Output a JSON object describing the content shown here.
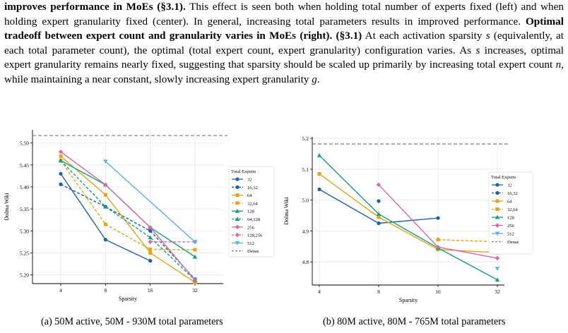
{
  "paragraph": {
    "s1_bold": "improves performance in MoEs (§3.1).",
    "s1_rest": " This effect is seen both when holding total number of experts fixed (left) and when holding expert granularity fixed (center). In general, increasing total parameters results in improved performance. ",
    "s2_bold": "Optimal tradeoff between expert count and granularity varies in MoEs (right). (§3.1)",
    "s2_a": " At each activation sparsity ",
    "var_s": "s",
    "s2_b": " (equivalently, at each total parameter count), the optimal (total expert count, expert granularity) configuration varies. As ",
    "s2_c": " increases, optimal expert granularity remains nearly fixed, suggesting that sparsity should be scaled up primarily by increasing total expert count ",
    "var_n": "n",
    "s2_d": ", while maintaining a near constant, slowly increasing expert granularity ",
    "var_g": "g",
    "s2_e": "."
  },
  "colors": {
    "32": "#1f5fa8",
    "64": "#e6a21a",
    "128": "#179e7a",
    "256": "#d46aa9",
    "512": "#56b4e9",
    "dense": "#8a8a8a"
  },
  "chart_data": [
    {
      "type": "line",
      "xlabel": "Sparsity",
      "ylabel": "Dolma Wiki",
      "x_ticks": [
        "4",
        "8",
        "16",
        "32"
      ],
      "y_ticks": [
        "5.20",
        "5.25",
        "5.30",
        "5.35",
        "5.40",
        "5.45",
        "5.50"
      ],
      "ylim": [
        5.18,
        5.53
      ],
      "legend_title": "Total Experts",
      "dense": 5.517,
      "series": [
        {
          "name": "32",
          "style": "solid",
          "colorKey": "32",
          "marker": "circle",
          "x": [
            "4",
            "8",
            "16"
          ],
          "values": [
            5.43,
            5.28,
            5.232
          ]
        },
        {
          "name": "16,32",
          "style": "dashed",
          "colorKey": "32",
          "marker": "circle",
          "x": [
            "4",
            "8",
            "16",
            "32"
          ],
          "values": [
            5.406,
            5.355,
            5.3,
            5.19
          ]
        },
        {
          "name": "64",
          "style": "solid",
          "colorKey": "64",
          "marker": "square",
          "x": [
            "4",
            "8",
            "16",
            "32"
          ],
          "values": [
            5.47,
            5.382,
            5.25,
            5.183
          ]
        },
        {
          "name": "32,64",
          "style": "dashed",
          "colorKey": "64",
          "marker": "square",
          "x": [
            "4",
            "8",
            "16",
            "32"
          ],
          "values": [
            5.46,
            5.315,
            5.258,
            5.257
          ]
        },
        {
          "name": "128",
          "style": "solid",
          "colorKey": "128",
          "marker": "triangle",
          "x": [
            "4",
            "8",
            "16",
            "32"
          ],
          "values": [
            5.46,
            5.405,
            5.308,
            5.241
          ]
        },
        {
          "name": "64,128",
          "style": "dashed",
          "colorKey": "128",
          "marker": "triangle",
          "x": [
            "4",
            "8",
            "16",
            "32"
          ],
          "values": [
            5.46,
            5.355,
            5.285,
            5.188
          ]
        },
        {
          "name": "256",
          "style": "solid",
          "colorKey": "256",
          "marker": "diamond",
          "x": [
            "4",
            "8",
            "16",
            "32"
          ],
          "values": [
            5.48,
            5.405,
            5.308,
            5.188
          ]
        },
        {
          "name": "128,256",
          "style": "dashed",
          "colorKey": "256",
          "marker": "diamond",
          "x": [
            "16",
            "32"
          ],
          "values": [
            5.275,
            5.275
          ]
        },
        {
          "name": "512",
          "style": "solid",
          "colorKey": "512",
          "marker": "tri_down",
          "x": [
            "8",
            "32"
          ],
          "values": [
            5.458,
            5.275
          ]
        }
      ],
      "legend": [
        "32",
        "16,32",
        "64",
        "32,64",
        "128",
        "64,128",
        "256",
        "128,256",
        "512",
        "Dense"
      ]
    },
    {
      "type": "line",
      "xlabel": "Sparsity",
      "ylabel": "Dolma Wiki",
      "x_ticks": [
        "4",
        "8",
        "16",
        "32"
      ],
      "y_ticks": [
        "4.8",
        "4.9",
        "5.0",
        "5.1",
        "5.2"
      ],
      "ylim": [
        4.725,
        5.205
      ],
      "legend_title": "Total Experts",
      "dense": 5.182,
      "series": [
        {
          "name": "32",
          "style": "solid",
          "colorKey": "32",
          "marker": "circle",
          "x": [
            "4",
            "8",
            "16"
          ],
          "values": [
            5.035,
            4.925,
            4.942
          ]
        },
        {
          "name": "16,32",
          "style": "dashed",
          "colorKey": "32",
          "marker": "circle",
          "x": [
            "8"
          ],
          "values": [
            4.997
          ]
        },
        {
          "name": "64",
          "style": "solid",
          "colorKey": "64",
          "marker": "square",
          "x": [
            "4",
            "8",
            "16",
            "32"
          ],
          "values": [
            5.085,
            4.945,
            4.84,
            4.83
          ]
        },
        {
          "name": "32,64",
          "style": "dashed",
          "colorKey": "64",
          "marker": "square",
          "x": [
            "16",
            "32"
          ],
          "values": [
            4.872,
            4.865
          ]
        },
        {
          "name": "128",
          "style": "solid",
          "colorKey": "128",
          "marker": "triangle",
          "x": [
            "4",
            "8",
            "16",
            "32"
          ],
          "values": [
            5.145,
            4.955,
            4.845,
            4.742
          ]
        },
        {
          "name": "256",
          "style": "solid",
          "colorKey": "256",
          "marker": "diamond",
          "x": [
            "8",
            "16",
            "32"
          ],
          "values": [
            5.05,
            4.848,
            4.812
          ]
        },
        {
          "name": "512",
          "style": "solid",
          "colorKey": "512",
          "marker": "tri_down",
          "x": [
            "32"
          ],
          "values": [
            4.778
          ]
        }
      ],
      "legend": [
        "32",
        "16,32",
        "64",
        "32,64",
        "128",
        "256",
        "512",
        "Dense"
      ]
    }
  ],
  "captions": {
    "left": "(a) 50M active, 50M - 930M total parameters",
    "right": "(b) 80M active, 80M - 765M total parameters"
  }
}
